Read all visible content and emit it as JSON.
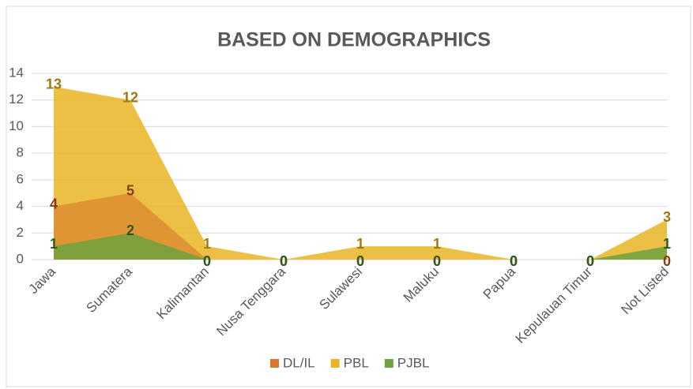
{
  "chart_data": {
    "type": "area",
    "title": "BASED ON DEMOGRAPHICS",
    "categories": [
      "Jawa",
      "Sumatera",
      "Kalimantan",
      "Nusa Tenggara",
      "Sulawesi",
      "Maluku",
      "Papua",
      "Kepulauan Timur",
      "Not Listed"
    ],
    "series": [
      {
        "name": "DL/IL",
        "color": "#d9782b",
        "values": [
          4,
          5,
          0,
          0,
          0,
          0,
          0,
          0,
          0
        ]
      },
      {
        "name": "PBL",
        "color": "#e9b524",
        "values": [
          13,
          12,
          1,
          0,
          1,
          1,
          0,
          0,
          3
        ]
      },
      {
        "name": "PJBL",
        "color": "#6fa13e",
        "values": [
          1,
          2,
          0,
          0,
          0,
          0,
          0,
          0,
          1
        ]
      }
    ],
    "ylim": [
      0,
      14
    ],
    "yticks": [
      0,
      2,
      4,
      6,
      8,
      10,
      12,
      14
    ],
    "grid": true,
    "legend": "bottom"
  }
}
